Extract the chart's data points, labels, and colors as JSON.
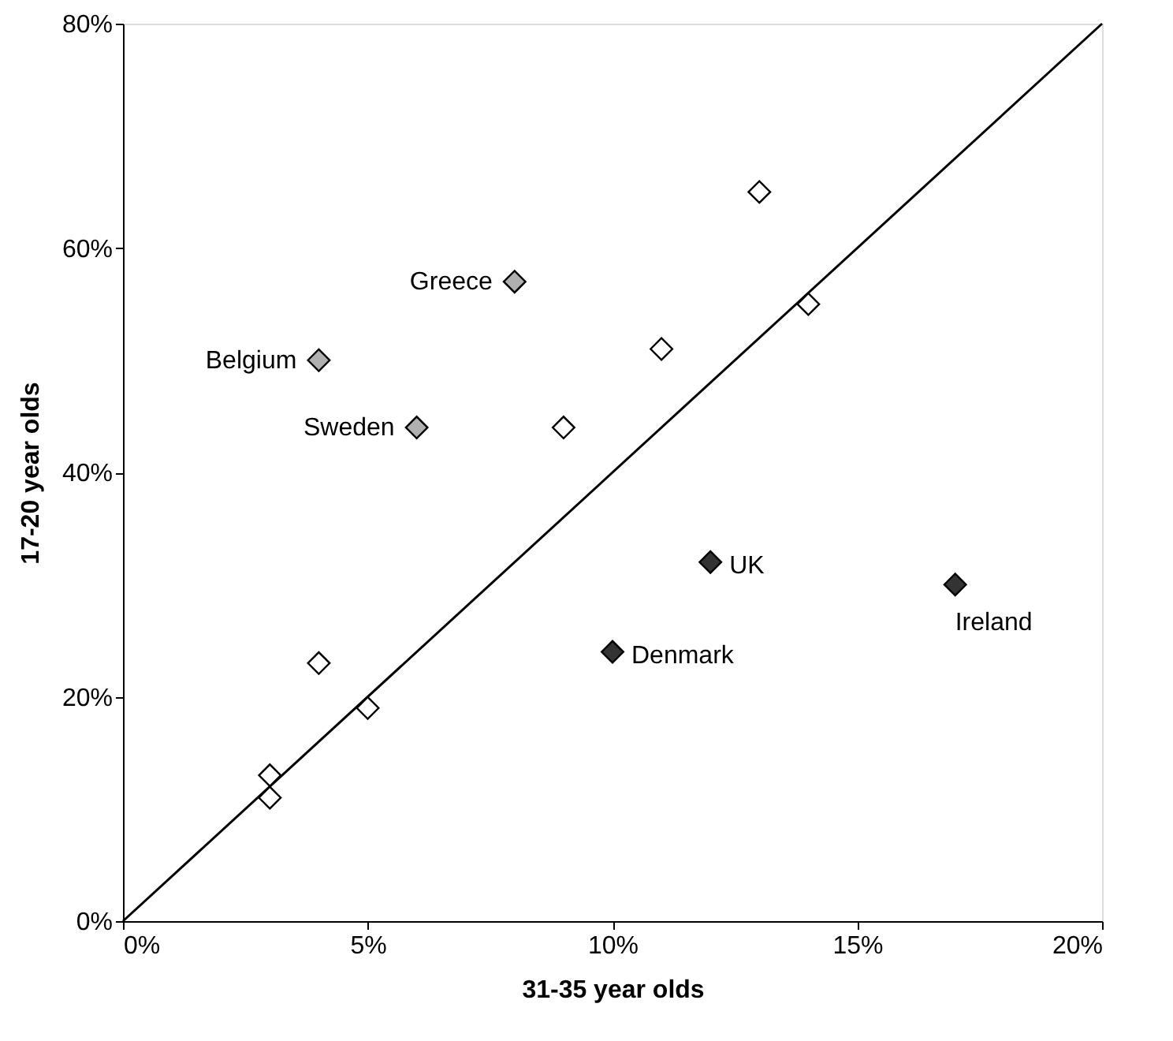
{
  "chart_data": {
    "type": "scatter",
    "xlabel": "31-35 year olds",
    "ylabel": "17-20 year olds",
    "xlim": [
      0,
      20
    ],
    "ylim": [
      0,
      80
    ],
    "xticks": [
      {
        "value": 0,
        "label": "0%"
      },
      {
        "value": 5,
        "label": "5%"
      },
      {
        "value": 10,
        "label": "10%"
      },
      {
        "value": 15,
        "label": "15%"
      },
      {
        "value": 20,
        "label": "20%"
      }
    ],
    "yticks": [
      {
        "value": 0,
        "label": "0%"
      },
      {
        "value": 20,
        "label": "20%"
      },
      {
        "value": 40,
        "label": "40%"
      },
      {
        "value": 60,
        "label": "60%"
      },
      {
        "value": 80,
        "label": "80%"
      }
    ],
    "grid": false,
    "marker": "diamond",
    "series": [
      {
        "type": "line",
        "color": "#000000",
        "marker": "none",
        "x": [
          0,
          20
        ],
        "values": [
          0,
          80
        ]
      },
      {
        "color": "#ffffff",
        "x": [
          3,
          3,
          4,
          5,
          9,
          11,
          13,
          14
        ],
        "values": [
          13,
          11,
          23,
          19,
          44,
          51,
          65,
          55
        ]
      },
      {
        "color": "#b0b0b0",
        "x": [
          4,
          8,
          6
        ],
        "values": [
          50,
          57,
          44
        ]
      },
      {
        "color": "#333333",
        "x": [
          12,
          10,
          17
        ],
        "values": [
          32,
          24,
          30
        ]
      }
    ],
    "annotations": [
      {
        "text": "Belgium",
        "x": 4,
        "y": 50
      },
      {
        "text": "Greece",
        "x": 8,
        "y": 57
      },
      {
        "text": "Sweden",
        "x": 6,
        "y": 44
      },
      {
        "text": "UK",
        "x": 12,
        "y": 32
      },
      {
        "text": "Denmark",
        "x": 10,
        "y": 24
      },
      {
        "text": "Ireland",
        "x": 17,
        "y": 30
      }
    ]
  }
}
